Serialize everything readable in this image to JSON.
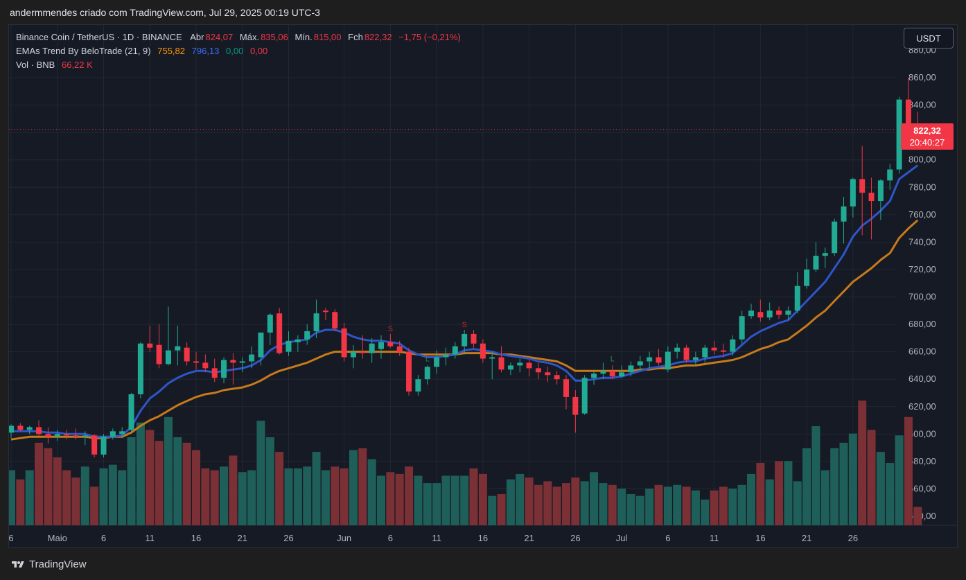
{
  "header": {
    "caption": "andermmendes criado com TradingView.com, Jul 29, 2025 00:19 UTC-3"
  },
  "legend": {
    "symbol": "Binance Coin / TetherUS · 1D · BINANCE",
    "open_label": "Abr",
    "open": "824,07",
    "high_label": "Máx.",
    "high": "835,06",
    "low_label": "Mín.",
    "low": "815,00",
    "close_label": "Fch",
    "close": "822,32",
    "change": "−1,75 (−0,21%)",
    "ema_name": "EMAs Trend By BeloTrade (21, 9)",
    "ema_slow": "755,82",
    "ema_fast": "796,13",
    "ema_v3": "0,00",
    "ema_v4": "0,00",
    "vol_name": "Vol · BNB",
    "vol_value": "66,22 K"
  },
  "currency_button": "USDT",
  "price_tag": {
    "price": "822,32",
    "countdown": "20:40:27"
  },
  "brand": "TradingView",
  "colors": {
    "up": "#22ab94",
    "down": "#f23645",
    "ema_fast": "#2962ff",
    "ema_slow": "#ff9800",
    "vol_up": "#1f5f5a",
    "vol_down": "#7a3035"
  },
  "chart_data": {
    "type": "candlestick",
    "interval": "1D",
    "y_axis": {
      "ticks": [
        "860,00",
        "840,00",
        "820,00",
        "800,00",
        "780,00",
        "760,00",
        "740,00",
        "720,00",
        "700,00",
        "680,00",
        "660,00",
        "640,00",
        "620,00",
        "600,00",
        "580,00",
        "560,00",
        "540,00"
      ],
      "range": [
        535,
        880
      ]
    },
    "x_axis": {
      "ticks": [
        "6",
        "Maio",
        "6",
        "11",
        "16",
        "21",
        "26",
        "Jun",
        "6",
        "11",
        "16",
        "21",
        "26",
        "Jul",
        "6",
        "11",
        "16",
        "21",
        "26"
      ]
    },
    "last_price": 822.32,
    "candles": [
      {
        "o": 601,
        "h": 607,
        "l": 597,
        "c": 606
      },
      {
        "o": 606,
        "h": 608,
        "l": 602,
        "c": 603
      },
      {
        "o": 603,
        "h": 606,
        "l": 600,
        "c": 605
      },
      {
        "o": 605,
        "h": 610,
        "l": 598,
        "c": 600
      },
      {
        "o": 600,
        "h": 605,
        "l": 593,
        "c": 598
      },
      {
        "o": 598,
        "h": 603,
        "l": 595,
        "c": 600
      },
      {
        "o": 600,
        "h": 603,
        "l": 596,
        "c": 599
      },
      {
        "o": 599,
        "h": 604,
        "l": 596,
        "c": 598
      },
      {
        "o": 598,
        "h": 602,
        "l": 592,
        "c": 599
      },
      {
        "o": 599,
        "h": 600,
        "l": 583,
        "c": 585
      },
      {
        "o": 585,
        "h": 600,
        "l": 583,
        "c": 598
      },
      {
        "o": 598,
        "h": 604,
        "l": 596,
        "c": 602
      },
      {
        "o": 600,
        "h": 605,
        "l": 597,
        "c": 602
      },
      {
        "o": 603,
        "h": 630,
        "l": 601,
        "c": 629
      },
      {
        "o": 629,
        "h": 667,
        "l": 626,
        "c": 666
      },
      {
        "o": 666,
        "h": 679,
        "l": 660,
        "c": 663
      },
      {
        "o": 665,
        "h": 680,
        "l": 648,
        "c": 651
      },
      {
        "o": 651,
        "h": 693,
        "l": 650,
        "c": 661
      },
      {
        "o": 661,
        "h": 679,
        "l": 650,
        "c": 664
      },
      {
        "o": 663,
        "h": 667,
        "l": 650,
        "c": 653
      },
      {
        "o": 653,
        "h": 660,
        "l": 647,
        "c": 652
      },
      {
        "o": 652,
        "h": 658,
        "l": 645,
        "c": 648
      },
      {
        "o": 648,
        "h": 655,
        "l": 638,
        "c": 641
      },
      {
        "o": 641,
        "h": 656,
        "l": 637,
        "c": 654
      },
      {
        "o": 654,
        "h": 659,
        "l": 636,
        "c": 652
      },
      {
        "o": 652,
        "h": 656,
        "l": 645,
        "c": 653
      },
      {
        "o": 653,
        "h": 664,
        "l": 648,
        "c": 658
      },
      {
        "o": 656,
        "h": 674,
        "l": 650,
        "c": 674
      },
      {
        "o": 674,
        "h": 688,
        "l": 665,
        "c": 687
      },
      {
        "o": 688,
        "h": 692,
        "l": 658,
        "c": 659
      },
      {
        "o": 660,
        "h": 675,
        "l": 657,
        "c": 668
      },
      {
        "o": 667,
        "h": 672,
        "l": 660,
        "c": 669
      },
      {
        "o": 669,
        "h": 680,
        "l": 665,
        "c": 675
      },
      {
        "o": 675,
        "h": 698,
        "l": 670,
        "c": 688
      },
      {
        "o": 690,
        "h": 692,
        "l": 683,
        "c": 689
      },
      {
        "o": 689,
        "h": 691,
        "l": 675,
        "c": 677
      },
      {
        "o": 677,
        "h": 681,
        "l": 653,
        "c": 656
      },
      {
        "o": 656,
        "h": 665,
        "l": 648,
        "c": 660
      },
      {
        "o": 660,
        "h": 672,
        "l": 655,
        "c": 659
      },
      {
        "o": 659,
        "h": 670,
        "l": 652,
        "c": 666
      },
      {
        "o": 662,
        "h": 672,
        "l": 655,
        "c": 667
      },
      {
        "o": 667,
        "h": 673,
        "l": 663,
        "c": 664
      },
      {
        "o": 664,
        "h": 668,
        "l": 657,
        "c": 660
      },
      {
        "o": 660,
        "h": 663,
        "l": 628,
        "c": 631
      },
      {
        "o": 631,
        "h": 643,
        "l": 628,
        "c": 640
      },
      {
        "o": 640,
        "h": 650,
        "l": 636,
        "c": 649
      },
      {
        "o": 649,
        "h": 661,
        "l": 644,
        "c": 656
      },
      {
        "o": 656,
        "h": 663,
        "l": 650,
        "c": 658
      },
      {
        "o": 658,
        "h": 667,
        "l": 655,
        "c": 664
      },
      {
        "o": 664,
        "h": 676,
        "l": 658,
        "c": 673
      },
      {
        "o": 673,
        "h": 676,
        "l": 663,
        "c": 666
      },
      {
        "o": 666,
        "h": 669,
        "l": 652,
        "c": 655
      },
      {
        "o": 655,
        "h": 660,
        "l": 640,
        "c": 656
      },
      {
        "o": 656,
        "h": 664,
        "l": 645,
        "c": 647
      },
      {
        "o": 647,
        "h": 652,
        "l": 643,
        "c": 650
      },
      {
        "o": 650,
        "h": 655,
        "l": 645,
        "c": 652
      },
      {
        "o": 652,
        "h": 654,
        "l": 642,
        "c": 648
      },
      {
        "o": 648,
        "h": 652,
        "l": 640,
        "c": 645
      },
      {
        "o": 645,
        "h": 649,
        "l": 638,
        "c": 643
      },
      {
        "o": 643,
        "h": 646,
        "l": 636,
        "c": 640
      },
      {
        "o": 640,
        "h": 643,
        "l": 618,
        "c": 627
      },
      {
        "o": 627,
        "h": 632,
        "l": 601,
        "c": 614
      },
      {
        "o": 615,
        "h": 643,
        "l": 614,
        "c": 641
      },
      {
        "o": 641,
        "h": 646,
        "l": 636,
        "c": 644
      },
      {
        "o": 644,
        "h": 652,
        "l": 640,
        "c": 646
      },
      {
        "o": 646,
        "h": 650,
        "l": 640,
        "c": 642
      },
      {
        "o": 642,
        "h": 650,
        "l": 641,
        "c": 645
      },
      {
        "o": 645,
        "h": 653,
        "l": 642,
        "c": 650
      },
      {
        "o": 650,
        "h": 657,
        "l": 646,
        "c": 653
      },
      {
        "o": 653,
        "h": 660,
        "l": 648,
        "c": 656
      },
      {
        "o": 656,
        "h": 662,
        "l": 650,
        "c": 652
      },
      {
        "o": 647,
        "h": 664,
        "l": 645,
        "c": 660
      },
      {
        "o": 660,
        "h": 666,
        "l": 655,
        "c": 663
      },
      {
        "o": 663,
        "h": 665,
        "l": 652,
        "c": 654
      },
      {
        "o": 654,
        "h": 660,
        "l": 650,
        "c": 656
      },
      {
        "o": 656,
        "h": 665,
        "l": 652,
        "c": 663
      },
      {
        "o": 663,
        "h": 668,
        "l": 658,
        "c": 661
      },
      {
        "o": 661,
        "h": 666,
        "l": 656,
        "c": 660
      },
      {
        "o": 660,
        "h": 672,
        "l": 657,
        "c": 669
      },
      {
        "o": 669,
        "h": 690,
        "l": 666,
        "c": 686
      },
      {
        "o": 686,
        "h": 695,
        "l": 684,
        "c": 690
      },
      {
        "o": 689,
        "h": 698,
        "l": 682,
        "c": 685
      },
      {
        "o": 685,
        "h": 696,
        "l": 683,
        "c": 690
      },
      {
        "o": 690,
        "h": 693,
        "l": 684,
        "c": 687
      },
      {
        "o": 687,
        "h": 693,
        "l": 683,
        "c": 690
      },
      {
        "o": 690,
        "h": 718,
        "l": 688,
        "c": 708
      },
      {
        "o": 708,
        "h": 728,
        "l": 706,
        "c": 720
      },
      {
        "o": 720,
        "h": 740,
        "l": 718,
        "c": 730
      },
      {
        "o": 730,
        "h": 736,
        "l": 721,
        "c": 732
      },
      {
        "o": 732,
        "h": 757,
        "l": 730,
        "c": 755
      },
      {
        "o": 755,
        "h": 773,
        "l": 739,
        "c": 766
      },
      {
        "o": 766,
        "h": 787,
        "l": 758,
        "c": 786
      },
      {
        "o": 786,
        "h": 810,
        "l": 745,
        "c": 776
      },
      {
        "o": 776,
        "h": 787,
        "l": 742,
        "c": 770
      },
      {
        "o": 770,
        "h": 786,
        "l": 756,
        "c": 785
      },
      {
        "o": 785,
        "h": 797,
        "l": 778,
        "c": 793
      },
      {
        "o": 793,
        "h": 846,
        "l": 790,
        "c": 844
      },
      {
        "o": 844,
        "h": 860,
        "l": 820,
        "c": 824
      },
      {
        "o": 824,
        "h": 835,
        "l": 815,
        "c": 822.32
      }
    ],
    "ema_fast": [
      602,
      602,
      602,
      602,
      601,
      601,
      600,
      600,
      600,
      598,
      598,
      598,
      599,
      605,
      617,
      626,
      631,
      637,
      641,
      644,
      646,
      646,
      645,
      646,
      647,
      648,
      650,
      654,
      661,
      665,
      667,
      668,
      669,
      674,
      676,
      676,
      674,
      671,
      669,
      668,
      668,
      667,
      666,
      661,
      658,
      656,
      656,
      657,
      658,
      661,
      662,
      661,
      660,
      658,
      657,
      656,
      655,
      653,
      652,
      650,
      646,
      639,
      639,
      640,
      641,
      641,
      642,
      644,
      646,
      648,
      649,
      650,
      652,
      653,
      653,
      655,
      656,
      657,
      659,
      665,
      671,
      675,
      678,
      681,
      683,
      690,
      697,
      704,
      711,
      721,
      731,
      744,
      752,
      757,
      763,
      770,
      786,
      791,
      796
    ],
    "ema_slow": [
      596,
      597,
      598,
      598,
      598,
      598,
      598,
      598,
      598,
      597,
      597,
      598,
      598,
      601,
      606,
      610,
      613,
      617,
      621,
      624,
      627,
      629,
      630,
      632,
      633,
      634,
      636,
      639,
      643,
      646,
      648,
      650,
      652,
      655,
      658,
      660,
      660,
      660,
      660,
      660,
      660,
      660,
      660,
      659,
      658,
      658,
      658,
      658,
      658,
      659,
      659,
      659,
      659,
      658,
      658,
      657,
      656,
      655,
      654,
      653,
      650,
      646,
      646,
      646,
      646,
      646,
      646,
      646,
      647,
      647,
      648,
      648,
      649,
      650,
      650,
      651,
      652,
      653,
      654,
      656,
      659,
      662,
      664,
      667,
      669,
      674,
      679,
      685,
      690,
      697,
      704,
      711,
      716,
      721,
      727,
      732,
      743,
      750,
      756
    ],
    "volume": [
      30,
      25,
      30,
      45,
      42,
      37,
      30,
      26,
      32,
      21,
      31,
      33,
      30,
      48,
      56,
      52,
      46,
      59,
      48,
      45,
      41,
      31,
      30,
      32,
      38,
      29,
      30,
      57,
      48,
      40,
      31,
      31,
      32,
      40,
      30,
      32,
      31,
      41,
      42,
      36,
      27,
      29,
      28,
      32,
      27,
      23,
      23,
      27,
      27,
      27,
      31,
      28,
      16,
      17,
      25,
      28,
      26,
      22,
      24,
      21,
      23,
      26,
      24,
      29,
      23,
      22,
      20,
      17,
      16,
      20,
      22,
      21,
      22,
      21,
      19,
      14,
      19,
      21,
      20,
      22,
      28,
      34,
      25,
      35,
      35,
      24,
      42,
      54,
      30,
      42,
      45,
      50,
      68,
      52,
      40,
      34,
      49,
      59,
      10
    ],
    "volume_up": [
      1,
      0,
      1,
      0,
      0,
      0,
      0,
      0,
      1,
      0,
      1,
      1,
      1,
      1,
      1,
      0,
      0,
      1,
      1,
      0,
      0,
      0,
      0,
      1,
      0,
      1,
      1,
      1,
      1,
      0,
      1,
      1,
      1,
      1,
      1,
      0,
      0,
      1,
      0,
      1,
      1,
      0,
      0,
      0,
      1,
      1,
      1,
      1,
      1,
      1,
      0,
      0,
      1,
      0,
      1,
      1,
      0,
      0,
      0,
      0,
      0,
      0,
      1,
      1,
      1,
      0,
      1,
      1,
      1,
      1,
      0,
      1,
      1,
      0,
      1,
      1,
      0,
      0,
      1,
      1,
      1,
      0,
      1,
      0,
      1,
      1,
      1,
      1,
      1,
      1,
      1,
      1,
      0,
      0,
      1,
      1,
      1,
      0,
      0
    ],
    "signals": [
      {
        "i": 41,
        "label": "S"
      },
      {
        "i": 45,
        "label": "L"
      },
      {
        "i": 49,
        "label": "S"
      },
      {
        "i": 65,
        "label": "L"
      }
    ]
  }
}
